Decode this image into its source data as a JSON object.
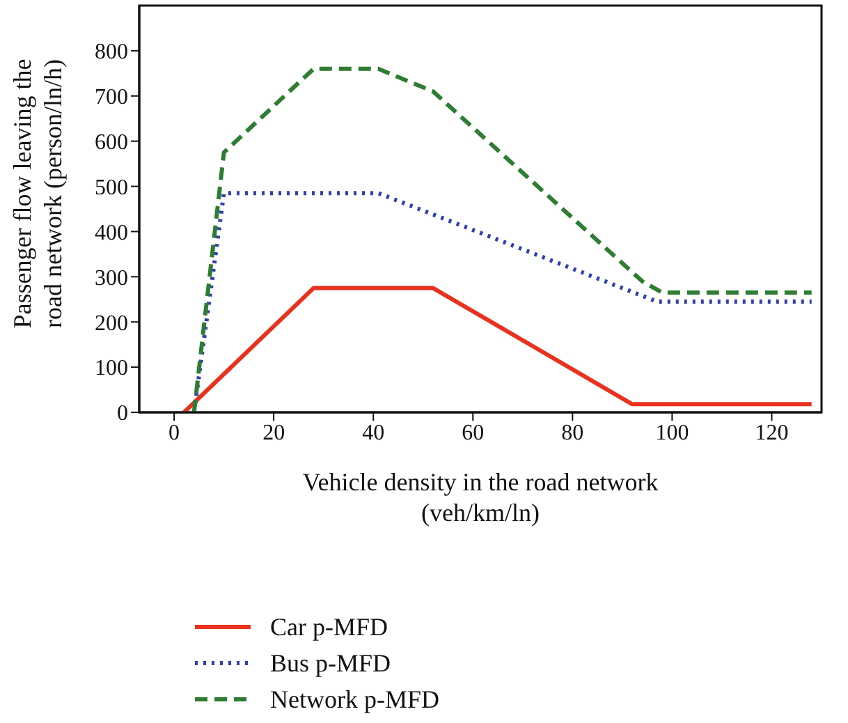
{
  "chart_data": {
    "type": "line",
    "xlabel": "Vehicle density in the road network\n(veh/km/ln)",
    "ylabel": "Passenger flow leaving the\nroad network (person/ln/h)",
    "xlim": [
      -7,
      130
    ],
    "xticks": [
      0,
      20,
      40,
      60,
      80,
      100,
      120
    ],
    "ylim": [
      0,
      900
    ],
    "yticks": [
      0,
      100,
      200,
      300,
      400,
      500,
      600,
      700,
      800
    ],
    "grid": false,
    "legend": "bottom left",
    "marker": "none",
    "series": [
      {
        "name": "Car p-MFD",
        "color": "#e8321e",
        "line_style": "solid",
        "x": [
          2,
          28,
          52,
          92,
          128
        ],
        "values": [
          0,
          275,
          275,
          18,
          18
        ]
      },
      {
        "name": "Bus p-MFD",
        "color": "#3040b0",
        "line_style": "dotted",
        "x": [
          4,
          10,
          41,
          97,
          128
        ],
        "values": [
          0,
          485,
          485,
          245,
          245
        ]
      },
      {
        "name": "Network p-MFD",
        "color": "#2e7d32",
        "line_style": "dashed",
        "x": [
          4,
          10,
          28,
          41,
          52,
          94,
          98,
          128
        ],
        "values": [
          0,
          575,
          760,
          760,
          710,
          290,
          265,
          265
        ]
      }
    ]
  }
}
